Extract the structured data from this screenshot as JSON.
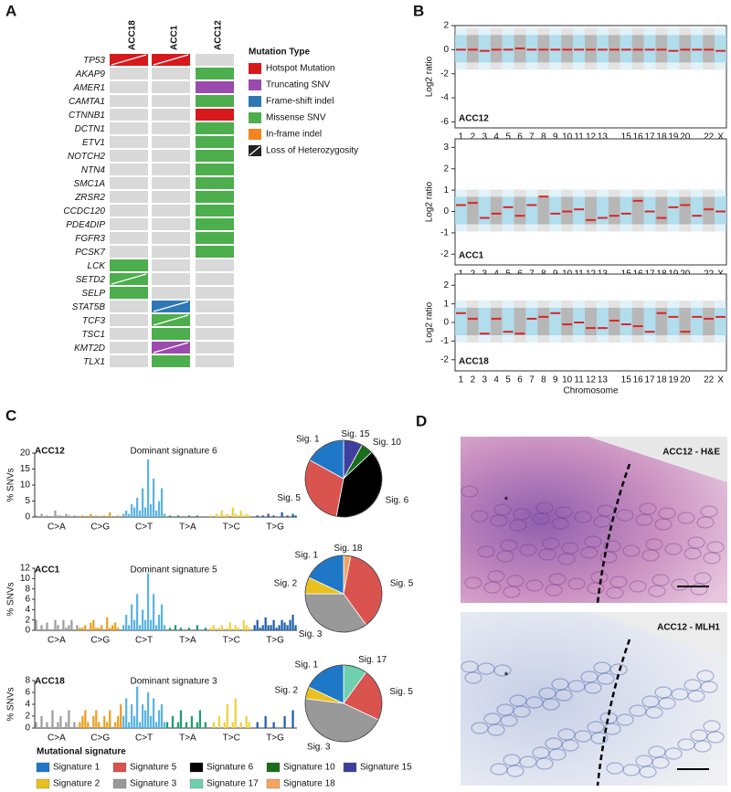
{
  "panel_labels": [
    "A",
    "B",
    "C",
    "D"
  ],
  "chart_data": [
    {
      "type": "oncoprint",
      "samples": [
        "ACC18",
        "ACC1",
        "ACC12"
      ],
      "genes": [
        "TP53",
        "AKAP9",
        "AMER1",
        "CAMTA1",
        "CTNNB1",
        "DCTN1",
        "ETV1",
        "NOTCH2",
        "NTN4",
        "SMC1A",
        "ZRSR2",
        "CCDC120",
        "PDE4DIP",
        "FGFR3",
        "PCSK7",
        "LCK",
        "SETD2",
        "SELP",
        "STAT5B",
        "TCF3",
        "TSC1",
        "KMT2D",
        "TLX1"
      ],
      "cells": [
        [
          0,
          0,
          null
        ],
        [
          null,
          null,
          3
        ],
        [
          null,
          null,
          1
        ],
        [
          null,
          null,
          3
        ],
        [
          null,
          null,
          0
        ],
        [
          null,
          null,
          3
        ],
        [
          null,
          null,
          3
        ],
        [
          null,
          null,
          3
        ],
        [
          null,
          null,
          3
        ],
        [
          null,
          null,
          3
        ],
        [
          null,
          null,
          3
        ],
        [
          null,
          null,
          3
        ],
        [
          null,
          null,
          3
        ],
        [
          null,
          null,
          3
        ],
        [
          null,
          null,
          3
        ],
        [
          3,
          null,
          null
        ],
        [
          3,
          null,
          null
        ],
        [
          3,
          null,
          null
        ],
        [
          null,
          2,
          null
        ],
        [
          null,
          3,
          null
        ],
        [
          null,
          3,
          null
        ],
        [
          null,
          1,
          null
        ],
        [
          null,
          3,
          null
        ]
      ],
      "loh": [
        [
          true,
          true,
          false
        ],
        [
          false,
          false,
          false
        ],
        [
          false,
          false,
          false
        ],
        [
          false,
          false,
          false
        ],
        [
          false,
          false,
          false
        ],
        [
          false,
          false,
          false
        ],
        [
          false,
          false,
          false
        ],
        [
          false,
          false,
          false
        ],
        [
          false,
          false,
          false
        ],
        [
          false,
          false,
          false
        ],
        [
          false,
          false,
          false
        ],
        [
          false,
          false,
          false
        ],
        [
          false,
          false,
          false
        ],
        [
          false,
          false,
          false
        ],
        [
          false,
          false,
          false
        ],
        [
          false,
          false,
          false
        ],
        [
          true,
          false,
          false
        ],
        [
          false,
          false,
          false
        ],
        [
          false,
          true,
          false
        ],
        [
          false,
          true,
          false
        ],
        [
          false,
          false,
          false
        ],
        [
          false,
          true,
          false
        ],
        [
          false,
          false,
          false
        ]
      ],
      "empty_color": "#d9d9d9",
      "legend_title": "Mutation Type",
      "mutation_types": [
        {
          "name": "Hotspot Mutation",
          "color": "#d7191c"
        },
        {
          "name": "Truncating SNV",
          "color": "#9b4aad"
        },
        {
          "name": "Frame-shift indel",
          "color": "#2f78b5"
        },
        {
          "name": "Missense SNV",
          "color": "#4cae4c"
        },
        {
          "name": "In-frame indel",
          "color": "#f5841f"
        }
      ],
      "loh_label": "Loss of Heterozygosity"
    },
    {
      "type": "segments",
      "label": "ACC12",
      "ylabel": "Log2 ratio",
      "categories": [
        "1",
        "2",
        "3",
        "4",
        "5",
        "6",
        "7",
        "8",
        "9",
        "10",
        "11",
        "12",
        "13",
        null,
        "15",
        "16",
        "17",
        "18",
        "19",
        "20",
        null,
        "22",
        "X"
      ],
      "values": [
        0,
        0,
        -0.1,
        0,
        0,
        0.1,
        0,
        0,
        0,
        0,
        0,
        0,
        0,
        0,
        0,
        0,
        0,
        0,
        -0.1,
        0,
        0,
        0,
        -0.1
      ],
      "ylim": [
        -6.5,
        2
      ],
      "yticks": [
        -6,
        -4,
        -2,
        0,
        2
      ],
      "color": "#d62728",
      "cloud_colors": [
        "#a9d9ec",
        "#b0b0b0"
      ]
    },
    {
      "type": "segments",
      "label": "ACC1",
      "ylabel": "Log2 ratio",
      "categories": [
        "1",
        "2",
        "3",
        "4",
        "5",
        "6",
        "7",
        "8",
        "9",
        "10",
        "11",
        "12",
        "13",
        null,
        "15",
        "16",
        "17",
        "18",
        "19",
        "20",
        null,
        "22",
        "X"
      ],
      "values": [
        0.3,
        0.4,
        -0.3,
        -0.1,
        0.2,
        -0.2,
        0.3,
        0.7,
        -0.1,
        0,
        0.1,
        -0.4,
        -0.3,
        -0.2,
        -0.1,
        0.5,
        0,
        -0.3,
        0.2,
        0.3,
        -0.2,
        0.1,
        0
      ],
      "ylim": [
        -2.5,
        3.4
      ],
      "yticks": [
        -2,
        -1,
        0,
        1,
        2,
        3
      ],
      "color": "#d62728",
      "cloud_colors": [
        "#a9d9ec",
        "#b0b0b0"
      ]
    },
    {
      "type": "segments",
      "label": "ACC18",
      "ylabel": "Log2 ratio",
      "xlabel": "Chromosome",
      "categories": [
        "1",
        "2",
        "3",
        "4",
        "5",
        "6",
        "7",
        "8",
        "9",
        "10",
        "11",
        "12",
        "13",
        null,
        "15",
        "16",
        "17",
        "18",
        "19",
        "20",
        null,
        "22",
        "X"
      ],
      "values": [
        0.5,
        0.2,
        -0.6,
        0.2,
        -0.5,
        -0.6,
        0.2,
        0.3,
        0.5,
        -0.1,
        0,
        -0.3,
        -0.3,
        0.1,
        -0.1,
        -0.2,
        -0.5,
        0.5,
        0.3,
        -0.5,
        0.3,
        0.2,
        0.3
      ],
      "ylim": [
        -2.6,
        2.6
      ],
      "yticks": [
        -2,
        -1,
        0,
        1,
        2
      ],
      "color": "#d62728",
      "cloud_colors": [
        "#a9d9ec",
        "#b0b0b0"
      ]
    },
    {
      "type": "bar",
      "title": "ACC12",
      "subtitle": "Dominant signature 6",
      "ylabel": "% SNVs",
      "groups": [
        "C>A",
        "C>G",
        "C>T",
        "T>A",
        "T>C",
        "T>G"
      ],
      "group_colors": [
        "#9e9e9e",
        "#e8a020",
        "#5ab4e5",
        "#1f9e6e",
        "#f0d23c",
        "#1f5fa8"
      ],
      "values": [
        0.5,
        0,
        1,
        0,
        0.5,
        0,
        0,
        2,
        0.5,
        0.5,
        0,
        1,
        0.5,
        0,
        0.5,
        0,
        0,
        0.5,
        0,
        0,
        1,
        0,
        0.5,
        0,
        0,
        0.5,
        0,
        1.5,
        0,
        0,
        0.5,
        0,
        1,
        2,
        1,
        4,
        3,
        6,
        2,
        9,
        3,
        18,
        4,
        12,
        2,
        5,
        9,
        1,
        0,
        0.5,
        0,
        0,
        0.5,
        0,
        0,
        0,
        0.5,
        0,
        0,
        0.5,
        0,
        0,
        0,
        0,
        0.5,
        0,
        1,
        0.5,
        2,
        0.5,
        1,
        0,
        3,
        1,
        0.5,
        2,
        0.5,
        1,
        0.5,
        0,
        0,
        0.5,
        0,
        0.5,
        0,
        1,
        0,
        0.5,
        0,
        0,
        1.5,
        0,
        0.5,
        0,
        1,
        0.5
      ],
      "ylim": [
        0,
        20
      ],
      "yticks": [
        0,
        5,
        10,
        15,
        20
      ]
    },
    {
      "type": "bar",
      "title": "ACC1",
      "subtitle": "Dominant signature 5",
      "ylabel": "% SNVs",
      "groups": [
        "C>A",
        "C>G",
        "C>T",
        "T>A",
        "T>C",
        "T>G"
      ],
      "group_colors": [
        "#9e9e9e",
        "#e8a020",
        "#5ab4e5",
        "#1f9e6e",
        "#f0d23c",
        "#1f5fa8"
      ],
      "values": [
        2,
        0,
        1,
        0,
        1.5,
        0,
        0,
        2,
        1,
        0,
        2,
        0.5,
        1,
        2,
        0,
        1,
        0.5,
        0.5,
        1,
        0,
        1.5,
        2,
        0.5,
        0.5,
        1,
        0,
        2.5,
        0.5,
        1,
        1.5,
        0.5,
        0,
        1,
        3,
        1,
        5,
        2,
        7,
        1,
        4,
        2,
        11,
        2,
        7,
        1,
        3,
        5,
        1,
        0,
        0.5,
        0,
        1,
        0,
        0.5,
        0,
        0,
        0.5,
        0,
        0,
        1,
        0,
        0,
        0.5,
        0,
        0.5,
        1,
        0,
        0.5,
        1,
        0,
        0.5,
        1.5,
        0,
        1,
        0.5,
        0,
        2,
        1,
        0.5,
        0,
        1,
        2,
        0.5,
        1,
        2.5,
        1,
        1,
        2,
        0.5,
        1,
        2,
        1.5,
        1,
        2,
        3,
        1
      ],
      "ylim": [
        0,
        12
      ],
      "yticks": [
        0,
        2,
        4,
        6,
        8,
        10,
        12
      ]
    },
    {
      "type": "bar",
      "title": "ACC18",
      "subtitle": "Dominant signature 3",
      "ylabel": "% SNVs",
      "groups": [
        "C>A",
        "C>G",
        "C>T",
        "T>A",
        "T>C",
        "T>G"
      ],
      "group_colors": [
        "#9e9e9e",
        "#e8a020",
        "#5ab4e5",
        "#1f9e6e",
        "#f0d23c",
        "#1f5fa8"
      ],
      "values": [
        1,
        0,
        2,
        0,
        1,
        0,
        3,
        0,
        1,
        2,
        0,
        1,
        3,
        0,
        1,
        0,
        1,
        2,
        3,
        1,
        0,
        2,
        3,
        1,
        0,
        2,
        1,
        3,
        0,
        1,
        2,
        4,
        2,
        5,
        1,
        4,
        2,
        7,
        1,
        4,
        3,
        6,
        2,
        5,
        1,
        3,
        4,
        1,
        1,
        0,
        2,
        0,
        1,
        3,
        0,
        1,
        0,
        2,
        0,
        1,
        3,
        0,
        1,
        0,
        0,
        1,
        0,
        2,
        0,
        1,
        4,
        0,
        1,
        5,
        0,
        1,
        0,
        2,
        1,
        0,
        0,
        1,
        0,
        0,
        2,
        0,
        0,
        1,
        0,
        0,
        0,
        2,
        0,
        0,
        3,
        0
      ],
      "ylim": [
        0,
        8
      ],
      "yticks": [
        0,
        2,
        4,
        6,
        8
      ]
    },
    {
      "type": "pie",
      "categories": [
        "Sig. 15",
        "Sig. 10",
        "Sig. 6",
        "Sig. 5",
        "Sig. 1"
      ],
      "values": [
        8,
        5,
        40,
        30,
        17
      ],
      "colors": [
        "#3f3f9e",
        "#1a6e1a",
        "#000000",
        "#d9534f",
        "#1f77c8"
      ]
    },
    {
      "type": "pie",
      "categories": [
        "Sig. 18",
        "Sig. 5",
        "Sig. 3",
        "Sig. 2",
        "Sig. 1"
      ],
      "values": [
        3,
        37,
        35,
        7,
        18
      ],
      "colors": [
        "#f4a460",
        "#d9534f",
        "#999999",
        "#e8c020",
        "#1f77c8"
      ]
    },
    {
      "type": "pie",
      "categories": [
        "Sig. 17",
        "Sig. 5",
        "Sig. 3",
        "Sig. 2",
        "Sig. 1"
      ],
      "values": [
        10,
        22,
        45,
        5,
        18
      ],
      "colors": [
        "#6fd0b0",
        "#d9534f",
        "#999999",
        "#e8c020",
        "#1f77c8"
      ]
    }
  ],
  "signature_legend": {
    "title": "Mutational signature",
    "items": [
      {
        "name": "Signature 1",
        "color": "#1f77c8"
      },
      {
        "name": "Signature 5",
        "color": "#d9534f"
      },
      {
        "name": "Signature 6",
        "color": "#000000"
      },
      {
        "name": "Signature 10",
        "color": "#1a6e1a"
      },
      {
        "name": "Signature 15",
        "color": "#3f3f9e"
      },
      {
        "name": "Signature 2",
        "color": "#e8c020"
      },
      {
        "name": "Signature 3",
        "color": "#999999"
      },
      {
        "name": "Signature 17",
        "color": "#6fd0b0"
      },
      {
        "name": "Signature 18",
        "color": "#f4a460"
      }
    ]
  },
  "images": [
    {
      "label": "ACC12 - H&E",
      "marker": "*"
    },
    {
      "label": "ACC12 - MLH1",
      "marker": "*"
    }
  ]
}
